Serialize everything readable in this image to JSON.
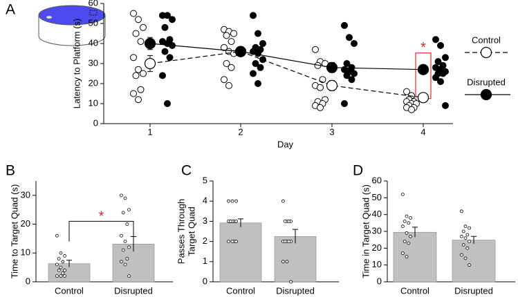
{
  "chart_data": [
    {
      "type": "line",
      "panel": "A",
      "xlabel": "Day",
      "ylabel": "Latency to Platform (s)",
      "categories": [
        "1",
        "2",
        "3",
        "4"
      ],
      "ylim": [
        0,
        60
      ],
      "yticks": [
        0,
        10,
        20,
        30,
        40,
        50,
        60
      ],
      "annotation": "*",
      "annotation_color": "#e8262b",
      "series": [
        {
          "name": "Control",
          "color": "#000000",
          "fill": "#ffffff",
          "linestyle": "dashed",
          "values": [
            30,
            36,
            19,
            13
          ],
          "errors": [
            4,
            2,
            2.5,
            1
          ],
          "points": [
            [
              55,
              52,
              48,
              45,
              41,
              33,
              27,
              25,
              24,
              17,
              15,
              12
            ],
            [
              47,
              46,
              45,
              44,
              41,
              38,
              36,
              35,
              30,
              28,
              22,
              19
            ],
            [
              37,
              31,
              30,
              29,
              22,
              19,
              18,
              12,
              11,
              10,
              9,
              8
            ],
            [
              16,
              14,
              12,
              12,
              11,
              11,
              10,
              10,
              9,
              8,
              8,
              7
            ]
          ]
        },
        {
          "name": "Disrupted",
          "color": "#000000",
          "fill": "#000000",
          "linestyle": "solid",
          "values": [
            40,
            36,
            28,
            27
          ],
          "errors": [
            3,
            2,
            2.5,
            2
          ],
          "points": [
            [
              54,
              54,
              52,
              48,
              42,
              41,
              40,
              39,
              36,
              33,
              24,
              10
            ],
            [
              54,
              45,
              40,
              38,
              37,
              36,
              35,
              32,
              30,
              28,
              25,
              20
            ],
            [
              49,
              43,
              40,
              30,
              28,
              27,
              26,
              25,
              24,
              22,
              10
            ],
            [
              42,
              39,
              33,
              31,
              29,
              28,
              27,
              26,
              25,
              25,
              23,
              21,
              9
            ]
          ]
        }
      ]
    },
    {
      "type": "bar",
      "panel": "B",
      "ylabel": [
        "Time to Target Quad (s)"
      ],
      "categories": [
        "Control",
        "Disrupted"
      ],
      "values": [
        6.3,
        13.1
      ],
      "errors": [
        1.2,
        2.6
      ],
      "color": "#c0c0c0",
      "ylim": [
        0,
        35
      ],
      "yticks": [
        0,
        10,
        20,
        30
      ],
      "annotation": "*",
      "annotation_color": "#e8262b",
      "points": [
        [
          16,
          10,
          9,
          8,
          7,
          6,
          5,
          4,
          4,
          3,
          2,
          2,
          2
        ],
        [
          30,
          29,
          25,
          24,
          20,
          16,
          14,
          12,
          11,
          8,
          7,
          6,
          2
        ]
      ]
    },
    {
      "type": "bar",
      "panel": "C",
      "ylabel": [
        "Passes Through",
        "Target Quad"
      ],
      "categories": [
        "Control",
        "Disrupted"
      ],
      "values": [
        2.92,
        2.25
      ],
      "errors": [
        0.2,
        0.35
      ],
      "color": "#c0c0c0",
      "ylim": [
        0,
        5
      ],
      "yticks": [
        0,
        1,
        2,
        3,
        4,
        5
      ],
      "points": [
        [
          4,
          4,
          4,
          3,
          3,
          3,
          3,
          3,
          3,
          2,
          2,
          2,
          2
        ],
        [
          4,
          3,
          3,
          3,
          3,
          2,
          2,
          2,
          2,
          2,
          1,
          1,
          0
        ]
      ]
    },
    {
      "type": "bar",
      "panel": "D",
      "ylabel": [
        "Time in Target Quad (s)"
      ],
      "categories": [
        "Control",
        "Disrupted"
      ],
      "values": [
        29.5,
        24.8
      ],
      "errors": [
        3,
        2.2
      ],
      "color": "#c0c0c0",
      "ylim": [
        0,
        60
      ],
      "yticks": [
        0,
        10,
        20,
        30,
        40,
        50,
        60
      ],
      "points": [
        [
          52,
          39,
          38,
          36,
          35,
          33,
          29,
          27,
          24,
          23,
          17,
          15
        ],
        [
          42,
          33,
          32,
          30,
          28,
          27,
          26,
          24,
          22,
          20,
          16,
          14,
          10
        ]
      ]
    }
  ]
}
